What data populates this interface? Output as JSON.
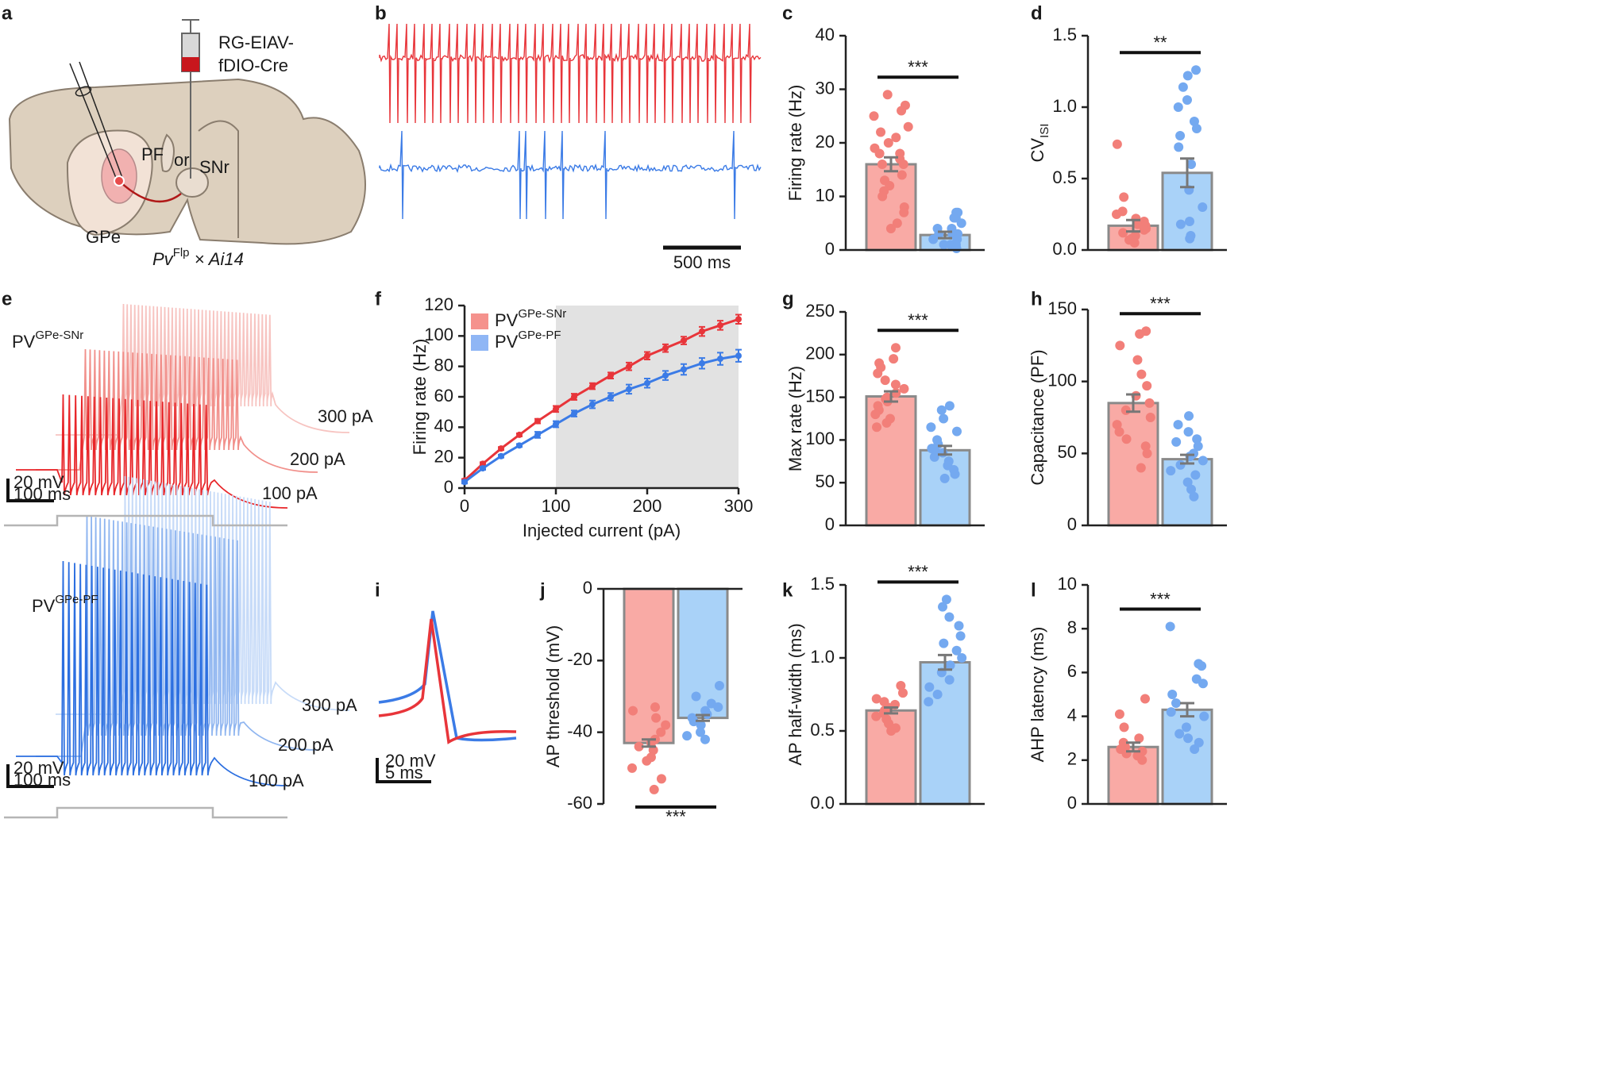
{
  "panel_labels": [
    "a",
    "b",
    "c",
    "d",
    "e",
    "f",
    "g",
    "h",
    "i",
    "j",
    "k",
    "l"
  ],
  "diagram": {
    "virus": [
      "RG-EIAV-",
      "fDIO-Cre"
    ],
    "regions": [
      "PF",
      "or",
      "SNr",
      "GPe"
    ],
    "genotype": {
      "base": "Pv",
      "sup": "Flp",
      "rest": " × Ai14"
    }
  },
  "traces": {
    "scale_b": "500 ms",
    "red_label": {
      "text": "PV",
      "sup": "GPe-SNr"
    },
    "blue_label": {
      "text": "PV",
      "sup": "GPe-PF"
    },
    "currents": [
      "100 pA",
      "200 pA",
      "300 pA"
    ],
    "scale_e": [
      "20 mV",
      "100 ms"
    ],
    "scale_i": [
      "20 mV",
      "5 ms"
    ]
  },
  "chart_data": [
    {
      "type": "bar",
      "ylabel": "Firing rate (Hz)",
      "ylim": [
        0,
        40
      ],
      "yticks": [
        0,
        10,
        20,
        30,
        40
      ],
      "significance": "***",
      "series": [
        {
          "color": "#f9aaa5",
          "point_color": "#f27f79",
          "values": [
            16
          ],
          "errors": [
            1.3
          ],
          "points": [
            29,
            27,
            26,
            25,
            23,
            22,
            21,
            20,
            19,
            18,
            18,
            17,
            16,
            16,
            14,
            13,
            12,
            11,
            10,
            8,
            7,
            5,
            4
          ]
        },
        {
          "color": "#a9d2f8",
          "point_color": "#74a9f0",
          "values": [
            2.8
          ],
          "errors": [
            0.6
          ],
          "points": [
            7,
            7,
            6,
            6,
            5,
            4,
            4,
            3,
            3,
            3,
            2,
            2,
            1,
            1,
            1,
            0.5,
            0.3
          ]
        }
      ]
    },
    {
      "type": "bar",
      "ylabel": "CV",
      "ylabel_sub": "ISI",
      "ylim": [
        0,
        1.5
      ],
      "yticks": [
        {
          "value": 0,
          "label": "0.0"
        },
        0.5,
        {
          "value": 1,
          "label": "1.0"
        },
        1.5
      ],
      "significance": "**",
      "series": [
        {
          "color": "#f9aaa5",
          "point_color": "#f27f79",
          "values": [
            0.17
          ],
          "errors": [
            0.04
          ],
          "points": [
            0.74,
            0.37,
            0.27,
            0.25,
            0.22,
            0.2,
            0.18,
            0.17,
            0.15,
            0.14,
            0.12,
            0.1,
            0.08,
            0.07,
            0.05
          ]
        },
        {
          "color": "#a9d2f8",
          "point_color": "#74a9f0",
          "values": [
            0.54
          ],
          "errors": [
            0.1
          ],
          "points": [
            1.26,
            1.22,
            1.14,
            1.05,
            1.0,
            0.9,
            0.85,
            0.8,
            0.72,
            0.6,
            0.42,
            0.3,
            0.2,
            0.18,
            0.1,
            0.08
          ]
        }
      ]
    },
    {
      "type": "bar",
      "ylabel": "Max rate (Hz)",
      "ylim": [
        0,
        250
      ],
      "yticks": [
        0,
        50,
        100,
        150,
        200,
        250
      ],
      "significance": "***",
      "series": [
        {
          "color": "#f9aaa5",
          "point_color": "#f27f79",
          "values": [
            151
          ],
          "errors": [
            6
          ],
          "points": [
            208,
            195,
            190,
            185,
            178,
            170,
            165,
            160,
            155,
            150,
            148,
            145,
            140,
            135,
            130,
            125,
            120,
            115
          ]
        },
        {
          "color": "#a9d2f8",
          "point_color": "#74a9f0",
          "values": [
            88
          ],
          "errors": [
            5
          ],
          "points": [
            140,
            135,
            125,
            115,
            110,
            100,
            95,
            90,
            88,
            85,
            80,
            75,
            70,
            65,
            60,
            55
          ]
        }
      ]
    },
    {
      "type": "bar",
      "ylabel": "Capacitance (PF)",
      "ylim": [
        0,
        150
      ],
      "yticks": [
        0,
        50,
        100,
        150
      ],
      "significance": "***",
      "series": [
        {
          "color": "#f9aaa5",
          "point_color": "#f27f79",
          "values": [
            85
          ],
          "errors": [
            6
          ],
          "points": [
            135,
            133,
            125,
            115,
            105,
            97,
            90,
            85,
            80,
            75,
            70,
            65,
            60,
            55,
            50,
            40
          ]
        },
        {
          "color": "#a9d2f8",
          "point_color": "#74a9f0",
          "values": [
            46
          ],
          "errors": [
            3
          ],
          "points": [
            76,
            70,
            65,
            60,
            58,
            55,
            50,
            48,
            45,
            42,
            38,
            35,
            30,
            25,
            20
          ]
        }
      ]
    },
    {
      "type": "bar",
      "ylabel": "AP threshold (mV)",
      "ylim": [
        -60,
        0
      ],
      "yticks": [
        -60,
        -40,
        -20,
        0
      ],
      "significance": "***",
      "series": [
        {
          "color": "#f9aaa5",
          "point_color": "#f27f79",
          "values": [
            -43
          ],
          "errors": [
            1
          ],
          "points": [
            -33,
            -34,
            -36,
            -38,
            -40,
            -42,
            -43,
            -44,
            -45,
            -47,
            -48,
            -50,
            -53,
            -56
          ]
        },
        {
          "color": "#a9d2f8",
          "point_color": "#74a9f0",
          "values": [
            -36
          ],
          "errors": [
            0.8
          ],
          "points": [
            -27,
            -30,
            -32,
            -33,
            -34,
            -35,
            -36,
            -37,
            -38,
            -40,
            -41,
            -42
          ]
        }
      ]
    },
    {
      "type": "bar",
      "ylabel": "AP half-width (ms)",
      "ylim": [
        0,
        1.5
      ],
      "yticks": [
        {
          "value": 0,
          "label": "0.0"
        },
        0.5,
        {
          "value": 1,
          "label": "1.0"
        },
        1.5
      ],
      "significance": "***",
      "series": [
        {
          "color": "#f9aaa5",
          "point_color": "#f27f79",
          "values": [
            0.64
          ],
          "errors": [
            0.02
          ],
          "points": [
            0.81,
            0.76,
            0.72,
            0.7,
            0.68,
            0.66,
            0.64,
            0.62,
            0.6,
            0.58,
            0.55,
            0.52,
            0.5
          ]
        },
        {
          "color": "#a9d2f8",
          "point_color": "#74a9f0",
          "values": [
            0.97
          ],
          "errors": [
            0.05
          ],
          "points": [
            1.4,
            1.35,
            1.28,
            1.22,
            1.15,
            1.1,
            1.05,
            1.0,
            0.95,
            0.9,
            0.85,
            0.8,
            0.75,
            0.7
          ]
        }
      ]
    },
    {
      "type": "bar",
      "ylabel": "AHP latency (ms)",
      "ylim": [
        0,
        10
      ],
      "yticks": [
        0,
        2,
        4,
        6,
        8,
        10
      ],
      "significance": "***",
      "series": [
        {
          "color": "#f9aaa5",
          "point_color": "#f27f79",
          "values": [
            2.6
          ],
          "errors": [
            0.2
          ],
          "points": [
            4.8,
            4.1,
            3.5,
            3.0,
            2.8,
            2.6,
            2.5,
            2.4,
            2.3,
            2.2,
            2.0
          ]
        },
        {
          "color": "#a9d2f8",
          "point_color": "#74a9f0",
          "values": [
            4.3
          ],
          "errors": [
            0.3
          ],
          "points": [
            8.1,
            6.4,
            6.3,
            5.7,
            5.5,
            5,
            4.6,
            4.2,
            4,
            3.5,
            3.2,
            3,
            2.8,
            2.5
          ]
        }
      ]
    },
    {
      "type": "line",
      "xlabel": "Injected current (pA)",
      "ylabel": "Firing rate (Hz)",
      "xlim": [
        0,
        300
      ],
      "xticks": [
        0,
        100,
        200,
        300
      ],
      "ylim": [
        0,
        120
      ],
      "yticks": [
        0,
        20,
        40,
        60,
        80,
        100,
        120
      ],
      "shade": [
        100,
        300
      ],
      "x": [
        0,
        20,
        40,
        60,
        80,
        100,
        120,
        140,
        160,
        180,
        200,
        220,
        240,
        260,
        280,
        300
      ],
      "series": [
        {
          "name": "PV",
          "name_sup": "GPe-SNr",
          "color": "#e8353a",
          "legend_color": "#f5928d",
          "values": [
            5,
            16,
            26,
            35,
            44,
            52,
            60,
            67,
            74,
            80,
            87,
            92,
            97,
            103,
            107,
            111
          ],
          "errors": [
            1,
            1,
            1,
            1,
            1.5,
            2,
            2,
            2,
            2,
            2.5,
            2.5,
            2.5,
            2.5,
            3,
            3,
            3
          ]
        },
        {
          "name": "PV",
          "name_sup": "GPe-PF",
          "color": "#3b7be6",
          "legend_color": "#8fb6f5",
          "values": [
            4,
            13,
            21,
            28,
            35,
            42,
            49,
            55,
            60,
            65,
            69,
            74,
            78,
            82,
            85,
            87
          ],
          "errors": [
            1,
            1,
            1,
            1,
            2,
            2,
            2,
            2.5,
            2.5,
            3,
            3,
            3,
            3.5,
            3.5,
            4,
            4
          ]
        }
      ]
    }
  ]
}
